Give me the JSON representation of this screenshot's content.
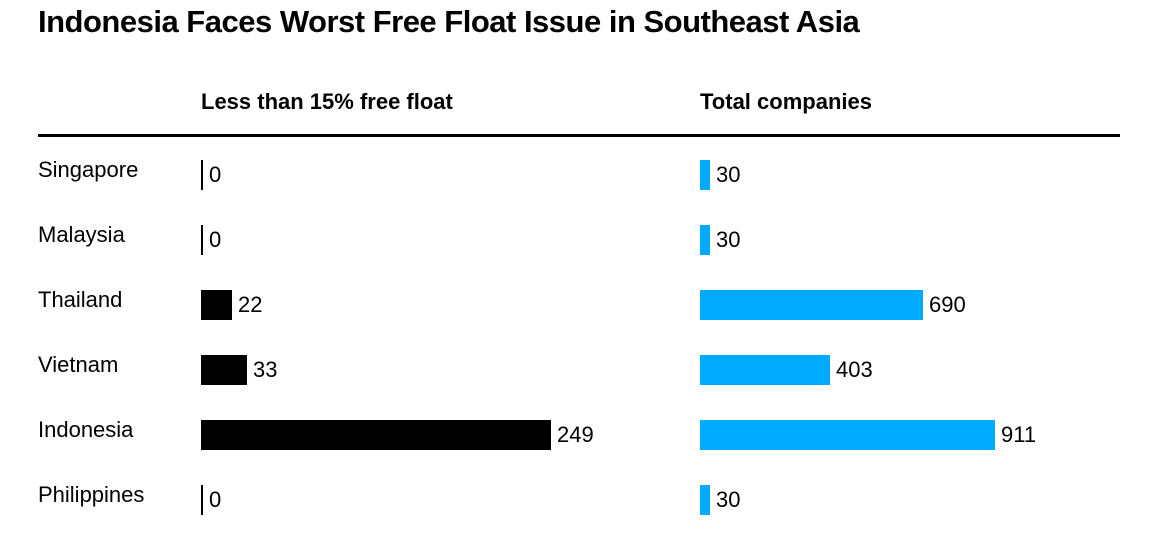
{
  "chart_data": {
    "type": "bar",
    "title": "Indonesia Faces Worst Free Float Issue in Southeast Asia",
    "categories": [
      "Singapore",
      "Malaysia",
      "Thailand",
      "Vietnam",
      "Indonesia",
      "Philippines"
    ],
    "series": [
      {
        "name": "Less than 15% free float",
        "values": [
          0,
          0,
          22,
          33,
          249,
          0
        ],
        "color": "#000000"
      },
      {
        "name": "Total companies",
        "values": [
          30,
          30,
          690,
          403,
          911,
          30
        ],
        "color": "#00aaff"
      }
    ],
    "legend": "column-headers-top",
    "grid": false
  }
}
